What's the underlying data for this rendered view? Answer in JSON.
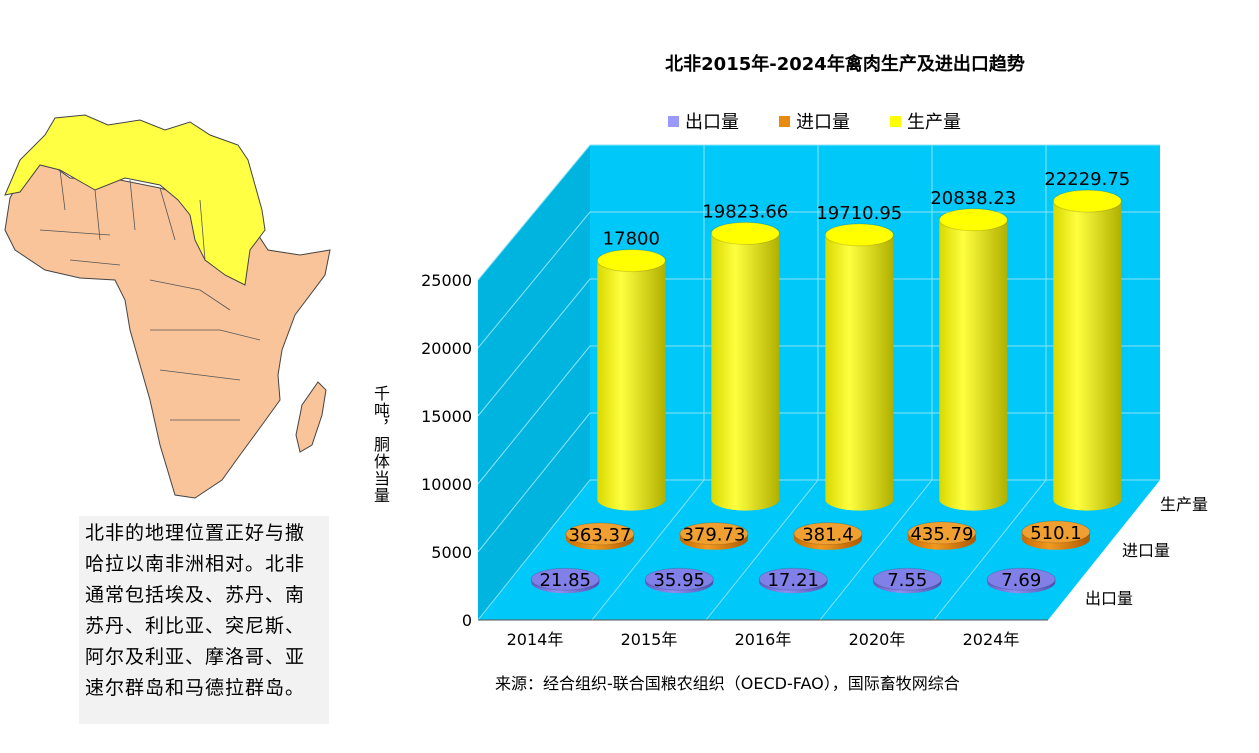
{
  "note": {
    "lines": [
      "北非的地理位置正好与撒",
      "哈拉以南非洲相对。北非",
      "通常包括埃及、苏丹、南",
      "苏丹、利比亚、突尼斯、",
      "阿尔及利亚、摩洛哥、亚",
      "速尔群岛和马德拉群岛。"
    ]
  },
  "source": "来源：经合组织-联合国粮农组织（OECD-FAO），国际畜牧网综合",
  "colors": {
    "plot_bg": "#00c8f8",
    "wall_side": "#00b4e0",
    "export": "#8080e8",
    "import": "#e88a10",
    "production": "#ffff00",
    "north_africa": "#ffff44",
    "rest_africa": "#f9c49a"
  },
  "chart_data": {
    "type": "bar",
    "title": "北非2015年-2024年禽肉生产及进出口趋势",
    "ylabel": "千吨，胴体当量",
    "categories": [
      "2014年",
      "2015年",
      "2016年",
      "2020年",
      "2024年"
    ],
    "yticks": [
      "0",
      "5000",
      "10000",
      "15000",
      "20000",
      "25000"
    ],
    "ylim": [
      0,
      25000
    ],
    "depth_labels": [
      "出口量",
      "进口量",
      "生产量"
    ],
    "legend": [
      "出口量",
      "进口量",
      "生产量"
    ],
    "series": [
      {
        "name": "出口量",
        "values": [
          21.85,
          35.95,
          17.21,
          7.55,
          7.69
        ],
        "labels": [
          "21.85",
          "35.95",
          "17.21",
          "7.55",
          "7.69"
        ]
      },
      {
        "name": "进口量",
        "values": [
          363.37,
          379.73,
          381.4,
          435.79,
          510.1
        ],
        "labels": [
          "363.37",
          "379.73",
          "381.4",
          "435.79",
          "510.1"
        ]
      },
      {
        "name": "生产量",
        "values": [
          17800,
          19823.66,
          19710.95,
          20838.23,
          22229.75
        ],
        "labels": [
          "17800",
          "19823.66",
          "19710.95",
          "20838.23",
          "22229.75"
        ]
      }
    ]
  }
}
